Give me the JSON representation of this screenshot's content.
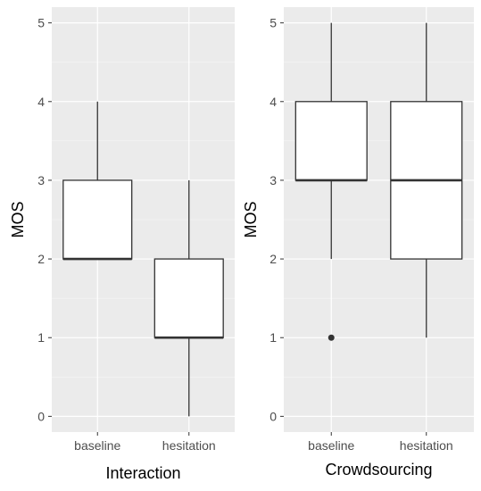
{
  "chart_data": [
    {
      "type": "boxplot",
      "xlabel": "Interaction",
      "ylabel": "MOS",
      "categories": [
        "baseline",
        "hesitation"
      ],
      "ylim": [
        -0.2,
        5.2
      ],
      "yticks": [
        0,
        1,
        2,
        3,
        4,
        5
      ],
      "grid": true,
      "boxes": [
        {
          "category": "baseline",
          "min": 2,
          "q1": 2,
          "median": 2,
          "q3": 3,
          "max": 4,
          "outliers": []
        },
        {
          "category": "hesitation",
          "min": 0,
          "q1": 1,
          "median": 1,
          "q3": 2,
          "max": 3,
          "outliers": []
        }
      ]
    },
    {
      "type": "boxplot",
      "xlabel": "Crowdsourcing",
      "ylabel": "MOS",
      "categories": [
        "baseline",
        "hesitation"
      ],
      "ylim": [
        -0.2,
        5.2
      ],
      "yticks": [
        0,
        1,
        2,
        3,
        4,
        5
      ],
      "grid": true,
      "boxes": [
        {
          "category": "baseline",
          "min": 2,
          "q1": 3,
          "median": 3,
          "q3": 4,
          "max": 5,
          "outliers": [
            1
          ]
        },
        {
          "category": "hesitation",
          "min": 1,
          "q1": 2,
          "median": 3,
          "q3": 4,
          "max": 5,
          "outliers": []
        }
      ]
    }
  ],
  "colors": {
    "panel_bg": "#ebebeb",
    "grid_major": "#ffffff",
    "box_fill": "#ffffff",
    "box_stroke": "#333333",
    "tick_text": "#4d4d4d"
  }
}
